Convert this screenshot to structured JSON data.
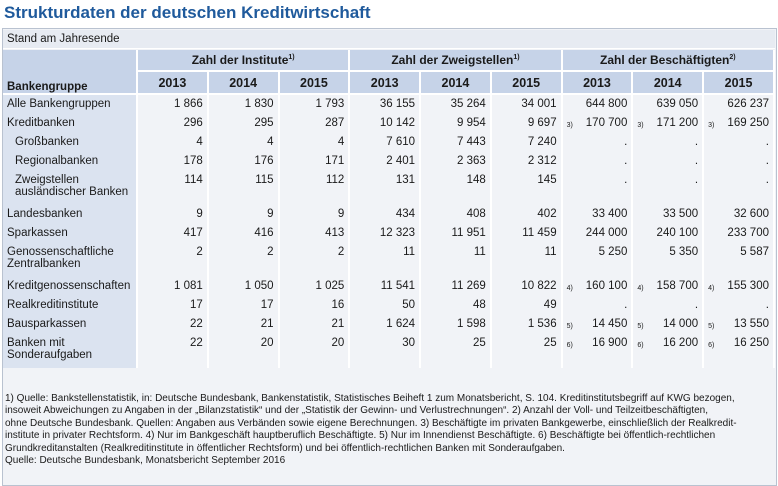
{
  "title": "Strukturdaten der deutschen Kreditwirtschaft",
  "subtitle": "Stand am Jahresende",
  "header": {
    "row_label": "Bankengruppe",
    "groups": [
      {
        "label": "Zahl der Institute",
        "fn": "1)"
      },
      {
        "label": "Zahl der Zweigstellen",
        "fn": "1)"
      },
      {
        "label": "Zahl der Beschäftigten",
        "fn": "2)"
      }
    ],
    "years": [
      "2013",
      "2014",
      "2015",
      "2013",
      "2014",
      "2015",
      "2013",
      "2014",
      "2015"
    ]
  },
  "rows": [
    {
      "label": "Alle Bankengruppen",
      "indent": false,
      "cells": [
        "1 866",
        "1 830",
        "1 793",
        "36 155",
        "35 264",
        "34 001",
        "644 800",
        "639 050",
        "626 237"
      ],
      "emp_fn": [
        "",
        "",
        ""
      ]
    },
    {
      "label": "Kreditbanken",
      "indent": false,
      "cells": [
        "296",
        "295",
        "287",
        "10 142",
        "9 954",
        "9 697",
        "170 700",
        "171 200",
        "169 250"
      ],
      "emp_fn": [
        "3)",
        "3)",
        "3)"
      ]
    },
    {
      "label": "Großbanken",
      "indent": true,
      "cells": [
        "4",
        "4",
        "4",
        "7 610",
        "7 443",
        "7 240",
        ".",
        ".",
        "."
      ],
      "emp_fn": [
        "",
        "",
        ""
      ]
    },
    {
      "label": "Regionalbanken",
      "indent": true,
      "cells": [
        "178",
        "176",
        "171",
        "2 401",
        "2 363",
        "2 312",
        ".",
        ".",
        "."
      ],
      "emp_fn": [
        "",
        "",
        ""
      ]
    },
    {
      "label": "Zweigstellen",
      "label2": "ausländischer Banken",
      "indent": true,
      "cells": [
        "114",
        "115",
        "112",
        "131",
        "148",
        "145",
        ".",
        ".",
        "."
      ],
      "emp_fn": [
        "",
        "",
        ""
      ]
    },
    {
      "label": "Landesbanken",
      "indent": false,
      "cells": [
        "9",
        "9",
        "9",
        "434",
        "408",
        "402",
        "33 400",
        "33 500",
        "32 600"
      ],
      "emp_fn": [
        "",
        "",
        ""
      ]
    },
    {
      "label": "Sparkassen",
      "indent": false,
      "cells": [
        "417",
        "416",
        "413",
        "12 323",
        "11 951",
        "11 459",
        "244 000",
        "240 100",
        "233 700"
      ],
      "emp_fn": [
        "",
        "",
        ""
      ]
    },
    {
      "label": "Genossenschaftliche",
      "label2": "Zentralbanken",
      "indent": false,
      "cells": [
        "2",
        "2",
        "2",
        "11",
        "11",
        "11",
        "5 250",
        "5 350",
        "5 587"
      ],
      "emp_fn": [
        "",
        "",
        ""
      ]
    },
    {
      "label": "Kreditgenossenschaften",
      "indent": false,
      "cells": [
        "1 081",
        "1 050",
        "1 025",
        "11 541",
        "11 269",
        "10 822",
        "160 100",
        "158 700",
        "155 300"
      ],
      "emp_fn": [
        "4)",
        "4)",
        "4)"
      ]
    },
    {
      "label": "Realkreditinstitute",
      "indent": false,
      "cells": [
        "17",
        "17",
        "16",
        "50",
        "48",
        "49",
        ".",
        ".",
        "."
      ],
      "emp_fn": [
        "",
        "",
        ""
      ]
    },
    {
      "label": "Bausparkassen",
      "indent": false,
      "cells": [
        "22",
        "21",
        "21",
        "1 624",
        "1 598",
        "1 536",
        "14 450",
        "14 000",
        "13 550"
      ],
      "emp_fn": [
        "5)",
        "5)",
        "5)"
      ]
    },
    {
      "label": "Banken mit",
      "label2": "Sonderaufgaben",
      "indent": false,
      "cells": [
        "22",
        "20",
        "20",
        "30",
        "25",
        "25",
        "16 900",
        "16 200",
        "16 250"
      ],
      "emp_fn": [
        "6)",
        "6)",
        "6)"
      ]
    }
  ],
  "notes": {
    "line1": "1) Quelle: Bankstellenstatistik, in: Deutsche Bundesbank, Bankenstatistik, Statistisches Beiheft 1 zum Monatsbericht, S. 104. Kreditinstitutsbegriff auf KWG bezogen,",
    "line2": "insoweit Abweichungen zu Angaben in der „Bilanzstatistik“ und der „Statistik der Gewinn- und Verlustrechnungen“.  2) Anzahl der Voll- und Teilzeitbeschäftigten,",
    "line3": "ohne Deutsche Bundesbank. Quellen: Angaben aus Verbänden sowie eigene Berechnungen.  3) Beschäftigte im privaten Bankgewerbe, einschließlich der Realkredit-",
    "line4": "institute in privater Rechtsform.  4) Nur im Bankgeschäft hauptberuflich Beschäftigte.  5) Nur im Innendienst Beschäftigte.  6) Beschäftigte bei öffentlich-rechtlichen",
    "line5": "Grundkreditanstalten (Realkreditinstitute in öffentlicher Rechtsform) und bei öffentlich-rechtlichen Banken mit Sonderaufgaben.",
    "source": "Quelle: Deutsche Bundesbank, Monatsbericht September 2016"
  }
}
